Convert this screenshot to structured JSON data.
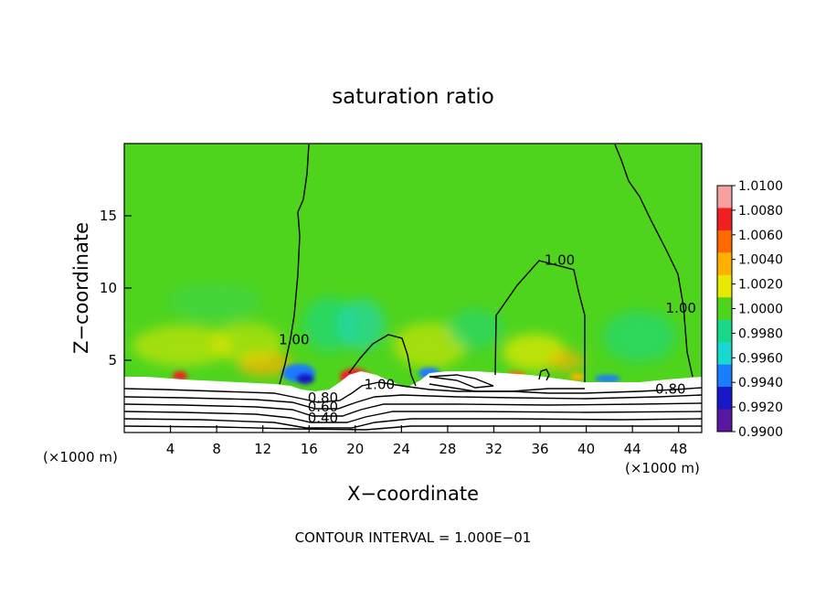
{
  "chart_data": {
    "type": "heatmap",
    "title": "saturation ratio",
    "xlabel": "X−coordinate",
    "ylabel": "Z−coordinate",
    "x_unit_left": "(×1000 m)",
    "x_unit_right": "(×1000 m)",
    "xlim": [
      0,
      50
    ],
    "ylim": [
      0,
      20
    ],
    "xticks": [
      4,
      8,
      12,
      16,
      20,
      24,
      28,
      32,
      36,
      40,
      44,
      48
    ],
    "yticks": [
      5,
      10,
      15
    ],
    "footer": "CONTOUR INTERVAL = 1.000E−01",
    "colorbar": {
      "ticks": [
        "1.0100",
        "1.0080",
        "1.0060",
        "1.0040",
        "1.0020",
        "1.0000",
        "0.9980",
        "0.9960",
        "0.9940",
        "0.9920",
        "0.9900"
      ],
      "colors": [
        "#f7a0a0",
        "#f02020",
        "#ff6a00",
        "#ffb000",
        "#e8e800",
        "#4fd41e",
        "#18d88a",
        "#18d8d0",
        "#1a7cff",
        "#1818c8",
        "#5a18a0"
      ]
    },
    "contour_labels": [
      {
        "text": "1.00",
        "x": 14.7,
        "z": 6.1
      },
      {
        "text": "1.00",
        "x": 37.7,
        "z": 11.6
      },
      {
        "text": "1.00",
        "x": 48.2,
        "z": 8.3
      },
      {
        "text": "1.00",
        "x": 22.1,
        "z": 3.0
      },
      {
        "text": "0.80",
        "x": 47.3,
        "z": 2.7
      },
      {
        "text": "0.80",
        "x": 17.2,
        "z": 2.1
      },
      {
        "text": "0.60",
        "x": 17.2,
        "z": 1.45
      },
      {
        "text": "0.40",
        "x": 17.2,
        "z": 0.7
      }
    ]
  }
}
